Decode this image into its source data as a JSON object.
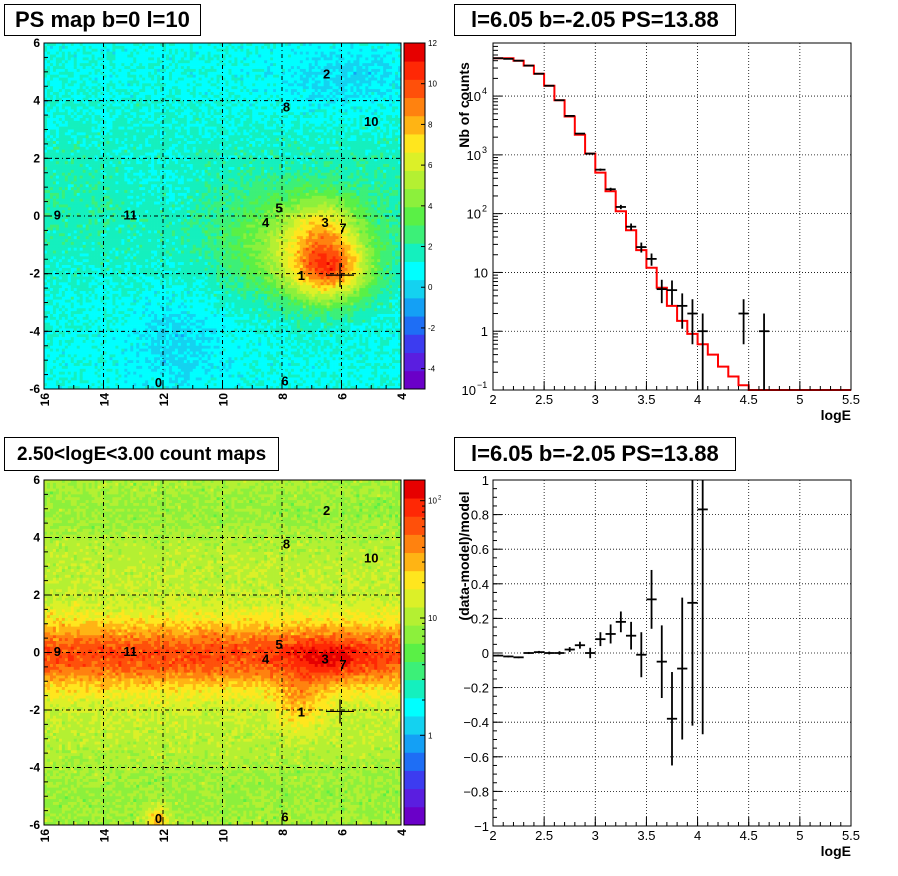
{
  "chart_data": [
    {
      "type": "heatmap",
      "title": "PS map b=0 l=10",
      "xticks": [
        "16",
        "14",
        "12",
        "10",
        "8",
        "6",
        "4"
      ],
      "yticks": [
        "6",
        "4",
        "2",
        "0",
        "-2",
        "-4",
        "-6"
      ],
      "xlim": [
        16,
        4
      ],
      "ylim": [
        -6,
        6
      ],
      "colorbar": {
        "ticks": [
          "12",
          "10",
          "8",
          "6",
          "4",
          "2",
          "0",
          "-2",
          "-4"
        ],
        "range": [
          -5,
          12
        ]
      },
      "sources": [
        {
          "label": "0",
          "l": 12.15,
          "b": -5.75
        },
        {
          "label": "1",
          "l": 7.35,
          "b": -2.05
        },
        {
          "label": "2",
          "l": 6.5,
          "b": 4.95
        },
        {
          "label": "3",
          "l": 6.55,
          "b": -0.2
        },
        {
          "label": "4",
          "l": 8.55,
          "b": -0.2
        },
        {
          "label": "5",
          "l": 8.1,
          "b": 0.3
        },
        {
          "label": "6",
          "l": 7.9,
          "b": -5.7
        },
        {
          "label": "7",
          "l": 5.95,
          "b": -0.4
        },
        {
          "label": "8",
          "l": 7.85,
          "b": 3.8
        },
        {
          "label": "9",
          "l": 15.55,
          "b": 0.05
        },
        {
          "label": "10",
          "l": 5.0,
          "b": 3.3
        },
        {
          "label": "11",
          "l": 13.1,
          "b": 0.05
        }
      ],
      "marker": {
        "l": 6.05,
        "b": -2.05
      }
    },
    {
      "type": "line",
      "title": "l=6.05 b=-2.05 PS=13.88",
      "xlabel": "logE",
      "ylabel": "Nb of counts",
      "yscale": "log",
      "xlim": [
        2,
        5.5
      ],
      "ylim": [
        0.1,
        80000
      ],
      "xticks": [
        "2",
        "2.5",
        "3",
        "3.5",
        "4",
        "4.5",
        "5",
        "5.5"
      ],
      "yticks": [
        "10",
        "1",
        "10^{-1}"
      ],
      "yticks_exp": [
        "4",
        "3",
        "2"
      ],
      "series": [
        {
          "kind": "model-step",
          "color": "#ff0000",
          "bin_width": 0.1,
          "x": [
            2.0,
            2.1,
            2.2,
            2.3,
            2.4,
            2.5,
            2.6,
            2.7,
            2.8,
            2.9,
            3.0,
            3.1,
            3.2,
            3.3,
            3.4,
            3.5,
            3.6,
            3.7,
            3.8,
            3.9,
            4.0,
            4.1,
            4.2,
            4.3,
            4.4,
            4.5,
            4.6,
            4.7,
            4.8,
            4.9,
            5.0,
            5.1,
            5.2,
            5.3,
            5.4
          ],
          "y": [
            44000,
            44000,
            40000,
            33000,
            24000,
            15000,
            8500,
            4500,
            2200,
            1050,
            500,
            240,
            110,
            52,
            24,
            12,
            5.5,
            2.7,
            1.5,
            0.9,
            0.6,
            0.4,
            0.25,
            0.17,
            0.12,
            0.1,
            0.1,
            0.1,
            0.1,
            0.1,
            0.1,
            0.1,
            0.1,
            0.1,
            0.1
          ]
        },
        {
          "kind": "data-points",
          "color": "#000000",
          "x": [
            2.05,
            2.15,
            2.25,
            2.35,
            2.45,
            2.55,
            2.65,
            2.75,
            2.85,
            2.95,
            3.05,
            3.15,
            3.25,
            3.35,
            3.45,
            3.55,
            3.65,
            3.75,
            3.85,
            3.95,
            4.05,
            4.45,
            4.65
          ],
          "y": [
            44000,
            43000,
            40000,
            33000,
            24000,
            15000,
            8500,
            4600,
            2300,
            1050,
            560,
            260,
            130,
            60,
            27,
            17,
            5.2,
            5,
            2.7,
            2,
            1,
            2,
            1
          ],
          "yerr_lo": [
            210,
            207,
            200,
            182,
            155,
            122,
            92,
            68,
            48,
            32,
            24,
            16,
            11,
            8,
            5.2,
            4,
            2.2,
            2.2,
            1.6,
            1.4,
            0.95,
            1.4,
            0.95
          ],
          "yerr_hi": [
            210,
            207,
            200,
            182,
            155,
            122,
            92,
            68,
            48,
            32,
            24,
            16,
            11,
            8,
            5.2,
            4,
            2.3,
            2.3,
            1.7,
            1.5,
            1.0,
            1.5,
            1.0
          ]
        }
      ]
    },
    {
      "type": "heatmap",
      "title": "2.50<logE<3.00 count maps",
      "xticks": [
        "16",
        "14",
        "12",
        "10",
        "8",
        "6",
        "4"
      ],
      "yticks": [
        "6",
        "4",
        "2",
        "0",
        "-2",
        "-4",
        "-6"
      ],
      "xlim": [
        16,
        4
      ],
      "ylim": [
        -6,
        6
      ],
      "colorbar": {
        "ticks": [
          "10",
          "10",
          "1"
        ],
        "ticks_exp": [
          "2",
          "",
          ""
        ],
        "scale": "log"
      },
      "sources": [
        {
          "label": "0",
          "l": 12.15,
          "b": -5.75
        },
        {
          "label": "1",
          "l": 7.35,
          "b": -2.05
        },
        {
          "label": "2",
          "l": 6.5,
          "b": 4.95
        },
        {
          "label": "3",
          "l": 6.55,
          "b": -0.2
        },
        {
          "label": "4",
          "l": 8.55,
          "b": -0.2
        },
        {
          "label": "5",
          "l": 8.1,
          "b": 0.3
        },
        {
          "label": "6",
          "l": 7.9,
          "b": -5.7
        },
        {
          "label": "7",
          "l": 5.95,
          "b": -0.4
        },
        {
          "label": "8",
          "l": 7.85,
          "b": 3.8
        },
        {
          "label": "9",
          "l": 15.55,
          "b": 0.05
        },
        {
          "label": "10",
          "l": 5.0,
          "b": 3.3
        },
        {
          "label": "11",
          "l": 13.1,
          "b": 0.05
        }
      ],
      "marker": {
        "l": 6.05,
        "b": -2.05
      }
    },
    {
      "type": "scatter",
      "title": "l=6.05 b=-2.05 PS=13.88",
      "xlabel": "logE",
      "ylabel": "(data-model)/model",
      "xlim": [
        2,
        5.5
      ],
      "ylim": [
        -1,
        1
      ],
      "xticks": [
        "2",
        "2.5",
        "3",
        "3.5",
        "4",
        "4.5",
        "5",
        "5.5"
      ],
      "yticks": [
        "1",
        "0.8",
        "0.6",
        "0.4",
        "0.2",
        "0",
        "−0.2",
        "−0.4",
        "−0.6",
        "−0.8",
        "−1"
      ],
      "series": [
        {
          "kind": "residual-points",
          "color": "#000000",
          "x": [
            2.05,
            2.15,
            2.25,
            2.35,
            2.45,
            2.55,
            2.65,
            2.75,
            2.85,
            2.95,
            3.05,
            3.15,
            3.25,
            3.35,
            3.45,
            3.55,
            3.65,
            3.75,
            3.85,
            3.95,
            4.05
          ],
          "y": [
            -0.015,
            -0.02,
            -0.025,
            0.0,
            0.005,
            0.0,
            0.0,
            0.02,
            0.045,
            0.0,
            0.08,
            0.11,
            0.18,
            0.1,
            -0.01,
            0.31,
            -0.05,
            -0.38,
            -0.09,
            0.29,
            0.83
          ],
          "yerr": [
            0.005,
            0.005,
            0.005,
            0.006,
            0.007,
            0.008,
            0.01,
            0.014,
            0.02,
            0.03,
            0.04,
            0.055,
            0.06,
            0.08,
            0.13,
            0.17,
            0.21,
            0.27,
            0.41,
            0.71,
            1.3
          ]
        }
      ]
    }
  ]
}
